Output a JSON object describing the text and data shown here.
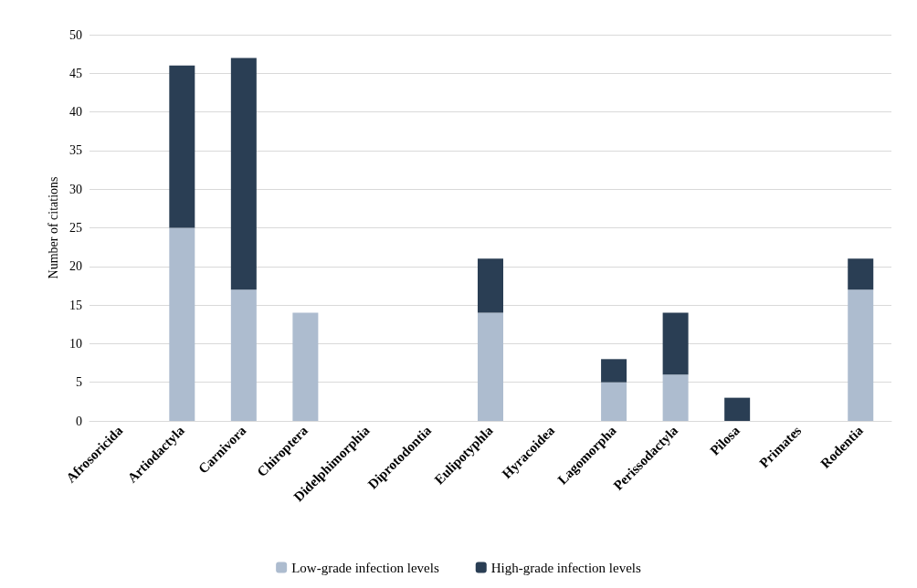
{
  "chart_data": {
    "type": "bar",
    "stacked": true,
    "ylabel": "Number of citations",
    "categories": [
      "Afrosoricida",
      "Artiodactyla",
      "Carnivora",
      "Chiroptera",
      "Didelphimorphia",
      "Diprotodontia",
      "Eulipotyphla",
      "Hyracoidea",
      "Lagomorpha",
      "Perissodactyla",
      "Pilosa",
      "Primates",
      "Rodentia"
    ],
    "series": [
      {
        "name": "Low-grade infection levels",
        "color": "#adbccf",
        "values": [
          0,
          25,
          17,
          14,
          0,
          0,
          14,
          0,
          5,
          6,
          0,
          0,
          17
        ]
      },
      {
        "name": "High-grade infection levels",
        "color": "#2a3e54",
        "values": [
          0,
          21,
          30,
          0,
          0,
          0,
          7,
          0,
          3,
          8,
          3,
          0,
          4
        ]
      }
    ],
    "ylim": [
      0,
      50
    ],
    "yticks": [
      0,
      5,
      10,
      15,
      20,
      25,
      30,
      35,
      40,
      45,
      50
    ],
    "grid": "y",
    "legend": "bottom"
  }
}
